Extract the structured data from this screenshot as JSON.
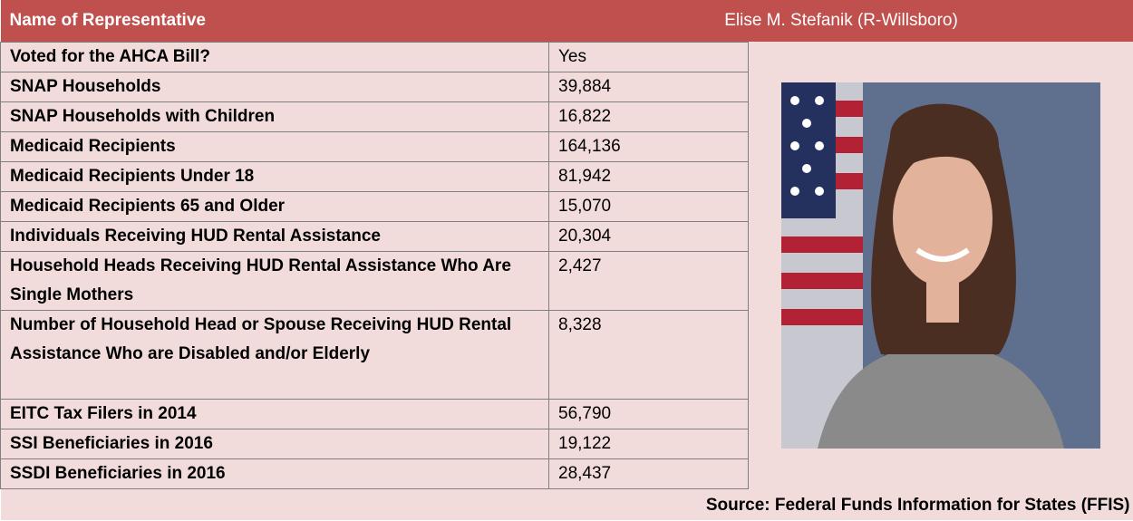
{
  "header": {
    "label": "Name of Representative",
    "value": "Elise M. Stefanik (R-Willsboro)"
  },
  "rows": [
    {
      "label": "Voted for the AHCA Bill?",
      "value": "Yes"
    },
    {
      "label": "SNAP Households",
      "value": "39,884"
    },
    {
      "label": "SNAP Households with Children",
      "value": "16,822"
    },
    {
      "label": "Medicaid Recipients",
      "value": "164,136"
    },
    {
      "label": "Medicaid Recipients Under 18",
      "value": "81,942"
    },
    {
      "label": "Medicaid Recipients 65 and Older",
      "value": "15,070"
    },
    {
      "label": "Individuals Receiving HUD Rental Assistance",
      "value": "20,304"
    },
    {
      "label": "Household Heads Receiving HUD Rental Assistance Who Are Single Mothers",
      "value": "2,427"
    },
    {
      "label": "Number of Household Head or Spouse Receiving HUD Rental Assistance Who are Disabled and/or Elderly",
      "value": "8,328"
    },
    {
      "label": "EITC Tax Filers in 2014",
      "value": "56,790"
    },
    {
      "label": "SSI Beneficiaries in 2016",
      "value": "19,122"
    },
    {
      "label": "SSDI Beneficiaries in 2016",
      "value": "28,437"
    }
  ],
  "source": "Source: Federal Funds Information for States (FFIS)"
}
